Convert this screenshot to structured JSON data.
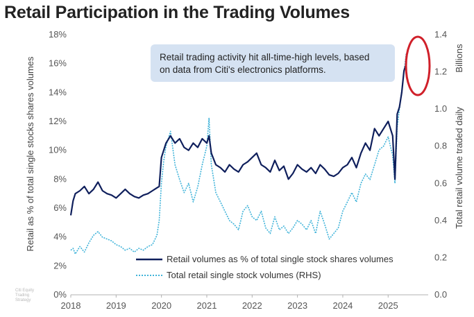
{
  "chart_data": {
    "type": "line",
    "title": "Retail Participation in the Trading Volumes",
    "ylabel": "Retail as % of total single stocks shares volumes",
    "y2label": "Total retail volume traded daily",
    "y2unit": "Billions",
    "x_ticks": [
      "2018",
      "2019",
      "2020",
      "2021",
      "2022",
      "2023",
      "2024",
      "2025"
    ],
    "xlim": [
      2018.0,
      2025.7
    ],
    "ylim": [
      0,
      18
    ],
    "y_ticks": [
      "0%",
      "2%",
      "4%",
      "6%",
      "8%",
      "10%",
      "12%",
      "14%",
      "16%",
      "18%"
    ],
    "y2lim": [
      0.0,
      1.4
    ],
    "y2_ticks": [
      "0.0",
      "0.2",
      "0.4",
      "0.6",
      "0.8",
      "1.0",
      "1.2",
      "1.4"
    ],
    "annotation": [
      "Retail trading activity hit all-time-high levels, based",
      "on data from Citi's electronics platforms."
    ],
    "source": [
      "Citi Equity",
      "Trading",
      "Strategy"
    ],
    "series": [
      {
        "name": "Retail volumes as % of total single stock shares volumes",
        "axis": "left",
        "color": "#0f1f5c",
        "style": "solid",
        "x": [
          2018.0,
          2018.05,
          2018.1,
          2018.2,
          2018.3,
          2018.4,
          2018.5,
          2018.6,
          2018.7,
          2018.8,
          2018.9,
          2019.0,
          2019.1,
          2019.2,
          2019.3,
          2019.4,
          2019.5,
          2019.6,
          2019.7,
          2019.8,
          2019.9,
          2019.95,
          2020.0,
          2020.05,
          2020.1,
          2020.2,
          2020.3,
          2020.4,
          2020.5,
          2020.6,
          2020.7,
          2020.8,
          2020.9,
          2021.0,
          2021.05,
          2021.1,
          2021.2,
          2021.3,
          2021.4,
          2021.5,
          2021.6,
          2021.7,
          2021.8,
          2021.9,
          2022.0,
          2022.1,
          2022.2,
          2022.3,
          2022.4,
          2022.5,
          2022.6,
          2022.7,
          2022.8,
          2022.9,
          2023.0,
          2023.1,
          2023.2,
          2023.3,
          2023.4,
          2023.5,
          2023.6,
          2023.7,
          2023.8,
          2023.9,
          2024.0,
          2024.1,
          2024.2,
          2024.3,
          2024.4,
          2024.5,
          2024.6,
          2024.7,
          2024.8,
          2024.9,
          2025.0,
          2025.1,
          2025.15,
          2025.2,
          2025.25,
          2025.3,
          2025.35,
          2025.4
        ],
        "values": [
          5.5,
          6.5,
          7.0,
          7.2,
          7.5,
          7.0,
          7.3,
          7.8,
          7.2,
          7.0,
          6.9,
          6.7,
          7.0,
          7.3,
          7.0,
          6.8,
          6.7,
          6.9,
          7.0,
          7.2,
          7.4,
          7.5,
          9.5,
          10.0,
          10.5,
          11.0,
          10.5,
          10.8,
          10.2,
          10.0,
          10.5,
          10.2,
          10.8,
          10.5,
          11.0,
          9.8,
          9.0,
          8.8,
          8.5,
          9.0,
          8.7,
          8.5,
          9.0,
          9.2,
          9.5,
          9.8,
          9.0,
          8.8,
          8.5,
          9.3,
          8.6,
          8.9,
          8.0,
          8.4,
          9.0,
          8.7,
          8.5,
          8.8,
          8.4,
          9.0,
          8.7,
          8.3,
          8.2,
          8.4,
          8.8,
          9.0,
          9.5,
          8.8,
          9.8,
          10.5,
          10.0,
          11.5,
          11.0,
          11.5,
          12.0,
          11.0,
          8.0,
          12.5,
          13.0,
          14.0,
          15.5,
          16.0
        ]
      },
      {
        "name": "Total retail single stock volumes (RHS)",
        "axis": "right",
        "color": "#3fb3d9",
        "style": "dotted",
        "x": [
          2018.0,
          2018.05,
          2018.1,
          2018.2,
          2018.3,
          2018.4,
          2018.5,
          2018.6,
          2018.7,
          2018.8,
          2018.9,
          2019.0,
          2019.1,
          2019.2,
          2019.3,
          2019.4,
          2019.5,
          2019.6,
          2019.7,
          2019.8,
          2019.9,
          2019.95,
          2020.0,
          2020.05,
          2020.1,
          2020.2,
          2020.3,
          2020.4,
          2020.5,
          2020.6,
          2020.7,
          2020.8,
          2020.9,
          2021.0,
          2021.05,
          2021.1,
          2021.2,
          2021.3,
          2021.4,
          2021.5,
          2021.6,
          2021.7,
          2021.8,
          2021.9,
          2022.0,
          2022.1,
          2022.2,
          2022.3,
          2022.4,
          2022.5,
          2022.6,
          2022.7,
          2022.8,
          2022.9,
          2023.0,
          2023.1,
          2023.2,
          2023.3,
          2023.4,
          2023.5,
          2023.6,
          2023.7,
          2023.8,
          2023.9,
          2024.0,
          2024.1,
          2024.2,
          2024.3,
          2024.4,
          2024.5,
          2024.6,
          2024.7,
          2024.8,
          2024.9,
          2025.0,
          2025.1,
          2025.15,
          2025.2,
          2025.25,
          2025.3,
          2025.35,
          2025.4
        ],
        "values": [
          0.24,
          0.25,
          0.22,
          0.26,
          0.23,
          0.28,
          0.32,
          0.34,
          0.31,
          0.3,
          0.29,
          0.27,
          0.26,
          0.24,
          0.25,
          0.23,
          0.25,
          0.24,
          0.26,
          0.27,
          0.32,
          0.4,
          0.6,
          0.72,
          0.8,
          0.88,
          0.7,
          0.62,
          0.55,
          0.6,
          0.5,
          0.58,
          0.7,
          0.8,
          0.95,
          0.7,
          0.55,
          0.5,
          0.45,
          0.4,
          0.38,
          0.35,
          0.45,
          0.48,
          0.42,
          0.4,
          0.45,
          0.36,
          0.33,
          0.42,
          0.35,
          0.37,
          0.33,
          0.36,
          0.4,
          0.38,
          0.35,
          0.4,
          0.33,
          0.45,
          0.38,
          0.3,
          0.33,
          0.36,
          0.45,
          0.5,
          0.55,
          0.5,
          0.6,
          0.65,
          0.62,
          0.7,
          0.78,
          0.8,
          0.85,
          0.75,
          0.6,
          0.9,
          1.0,
          1.1,
          1.2,
          1.3
        ]
      }
    ]
  }
}
